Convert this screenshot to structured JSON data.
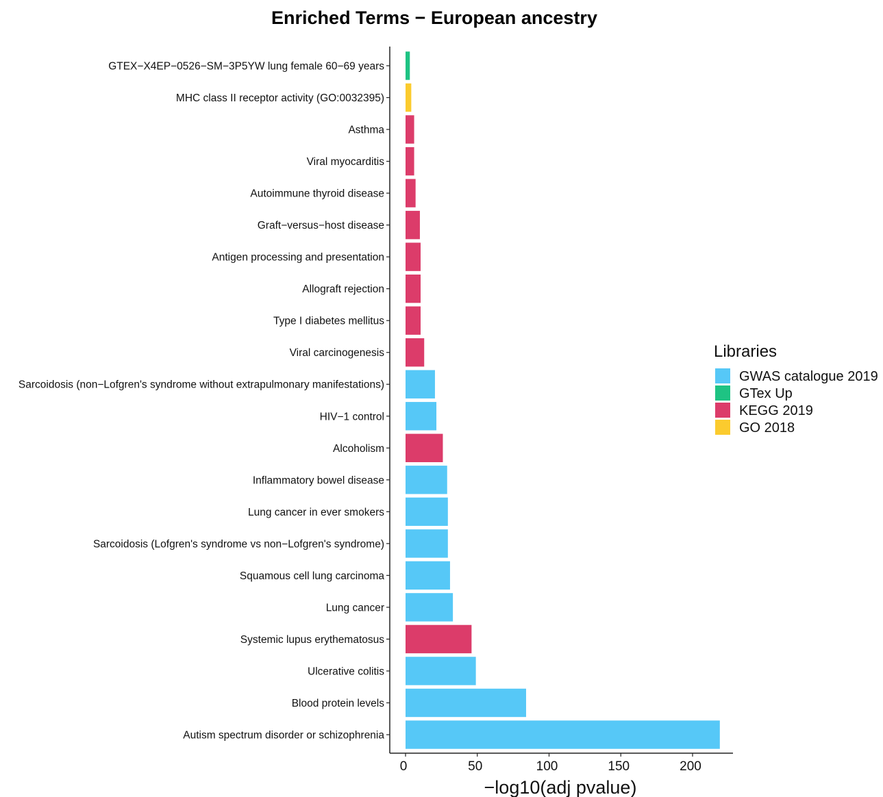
{
  "chart_data": {
    "type": "bar",
    "orientation": "horizontal",
    "title": "Enriched Terms − European ancestry",
    "xlabel": "−log10(adj pvalue)",
    "ylabel": "",
    "xlim": [
      -2,
      228
    ],
    "xticks": [
      0,
      50,
      100,
      150,
      200
    ],
    "grid": false,
    "legend": {
      "title": "Libraries",
      "position": "right",
      "entries": [
        {
          "name": "GWAS catalogue 2019",
          "color": "#56C8F7"
        },
        {
          "name": "GTex Up",
          "color": "#1EC383"
        },
        {
          "name": "KEGG 2019",
          "color": "#DC3C6A"
        },
        {
          "name": "GO 2018",
          "color": "#FBCB2E"
        }
      ]
    },
    "bars": [
      {
        "term": "GTEX−X4EP−0526−SM−3P5YW lung female 60−69 years",
        "value": 3,
        "library": "GTex Up"
      },
      {
        "term": "MHC class II receptor activity (GO:0032395)",
        "value": 4,
        "library": "GO 2018"
      },
      {
        "term": "Asthma",
        "value": 6,
        "library": "KEGG 2019"
      },
      {
        "term": "Viral myocarditis",
        "value": 6,
        "library": "KEGG 2019"
      },
      {
        "term": "Autoimmune thyroid disease",
        "value": 7,
        "library": "KEGG 2019"
      },
      {
        "term": "Graft−versus−host disease",
        "value": 10,
        "library": "KEGG 2019"
      },
      {
        "term": "Antigen processing and presentation",
        "value": 10.5,
        "library": "KEGG 2019"
      },
      {
        "term": "Allograft rejection",
        "value": 10.5,
        "library": "KEGG 2019"
      },
      {
        "term": "Type I diabetes mellitus",
        "value": 10.5,
        "library": "KEGG 2019"
      },
      {
        "term": "Viral carcinogenesis",
        "value": 13,
        "library": "KEGG 2019"
      },
      {
        "term": "Sarcoidosis (non−Lofgren's syndrome without extrapulmonary manifestations)",
        "value": 20.5,
        "library": "GWAS catalogue 2019"
      },
      {
        "term": "HIV−1 control",
        "value": 21.5,
        "library": "GWAS catalogue 2019"
      },
      {
        "term": "Alcoholism",
        "value": 26,
        "library": "KEGG 2019"
      },
      {
        "term": "Inflammatory bowel disease",
        "value": 29,
        "library": "GWAS catalogue 2019"
      },
      {
        "term": "Lung cancer in ever smokers",
        "value": 29.5,
        "library": "GWAS catalogue 2019"
      },
      {
        "term": "Sarcoidosis (Lofgren's syndrome vs non−Lofgren's syndrome)",
        "value": 29.5,
        "library": "GWAS catalogue 2019"
      },
      {
        "term": "Squamous cell lung carcinoma",
        "value": 31,
        "library": "GWAS catalogue 2019"
      },
      {
        "term": "Lung cancer",
        "value": 33,
        "library": "GWAS catalogue 2019"
      },
      {
        "term": "Systemic lupus erythematosus",
        "value": 46,
        "library": "KEGG 2019"
      },
      {
        "term": "Ulcerative colitis",
        "value": 49,
        "library": "GWAS catalogue 2019"
      },
      {
        "term": "Blood protein levels",
        "value": 84,
        "library": "GWAS catalogue 2019"
      },
      {
        "term": "Autism spectrum disorder or schizophrenia",
        "value": 219,
        "library": "GWAS catalogue 2019"
      }
    ]
  }
}
